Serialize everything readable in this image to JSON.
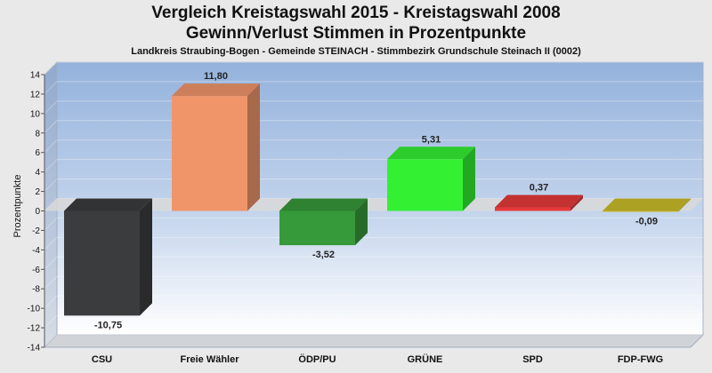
{
  "chart_data": {
    "type": "bar",
    "title": "Vergleich Kreistagswahl 2015 - Kreistagswahl 2008",
    "title2": "Gewinn/Verlust Stimmen in Prozentpunkte",
    "subtitle": "Landkreis Straubing-Bogen - Gemeinde STEINACH - Stimmbezirk Grundschule Steinach II (0002)",
    "ylabel": "Prozentpunkte",
    "xlabel": "",
    "ylim": [
      -14,
      14
    ],
    "yticks": [
      14,
      12,
      10,
      8,
      6,
      4,
      2,
      0,
      -2,
      -4,
      -6,
      -8,
      -10,
      -12,
      -14
    ],
    "categories": [
      "CSU",
      "Freie Wähler",
      "ÖDP/PU",
      "GRÜNE",
      "SPD",
      "FDP-FWG"
    ],
    "values": [
      -10.75,
      11.8,
      -3.52,
      5.31,
      0.37,
      -0.09
    ],
    "value_labels": [
      "-10,75",
      "11,80",
      "-3,52",
      "5,31",
      "0,37",
      "-0,09"
    ],
    "colors": [
      "#3a3c3e",
      "#f0956a",
      "#36993a",
      "#33f033",
      "#e53a3a",
      "#cbbd2a"
    ],
    "grid": true,
    "legend": "none"
  }
}
